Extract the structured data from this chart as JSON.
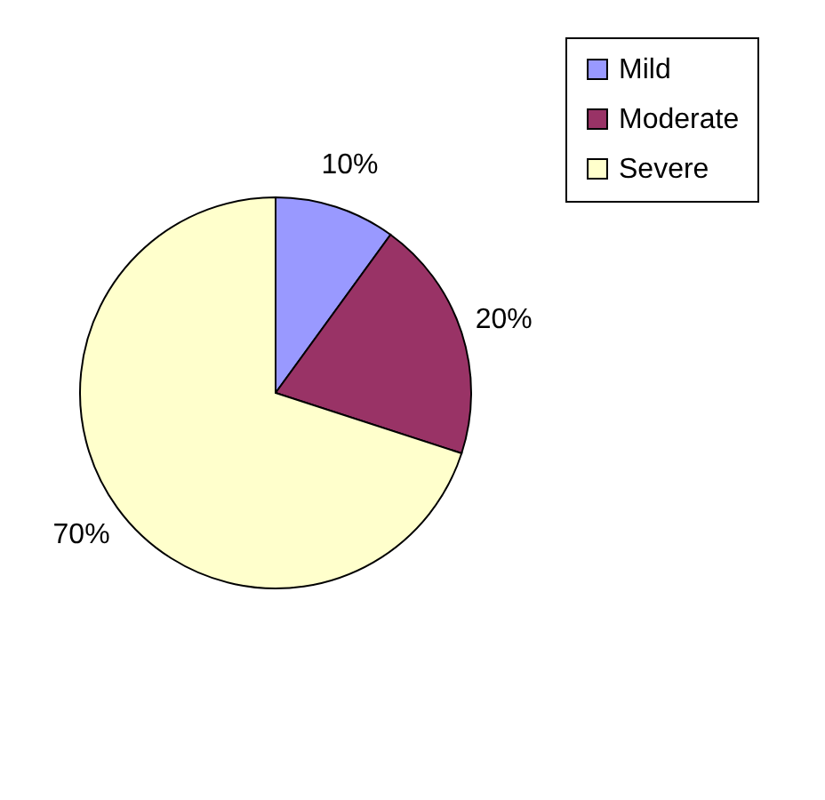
{
  "chart_data": {
    "type": "pie",
    "categories": [
      "Mild",
      "Moderate",
      "Severe"
    ],
    "values": [
      10,
      20,
      70
    ],
    "colors": [
      "#9999ff",
      "#993366",
      "#ffffcc"
    ],
    "value_labels": [
      "10%",
      "20%",
      "70%"
    ],
    "legend": "right"
  }
}
